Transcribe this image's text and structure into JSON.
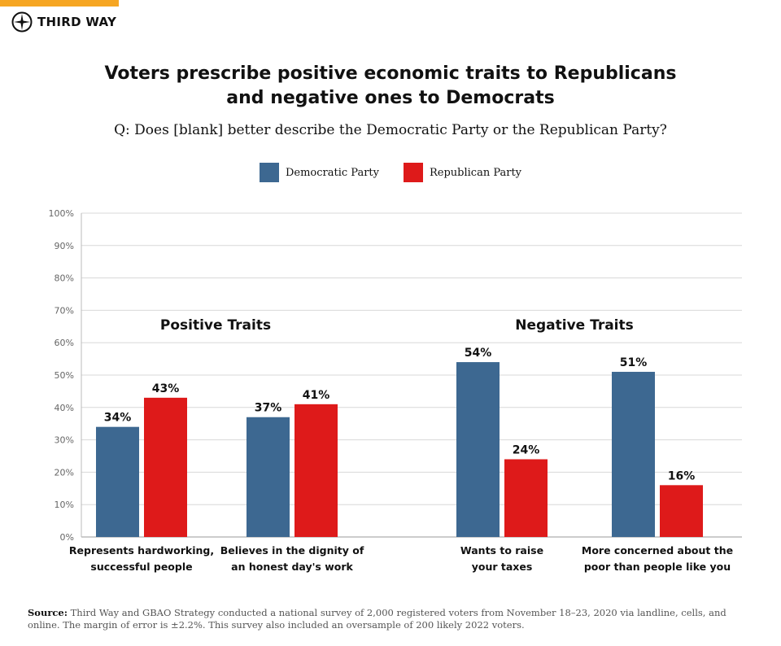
{
  "brand": {
    "name": "THIRD WAY",
    "accent": "#f6a623"
  },
  "title_line1": "Voters prescribe positive economic traits to Republicans",
  "title_line2": "and negative ones to Democrats",
  "subtitle": "Q: Does [blank] better describe the Democratic Party or the Republican Party?",
  "source_label": "Source:",
  "source_text": "Third Way and GBAO Strategy conducted a national survey of 2,000 registered voters from November 18–23, 2020 via landline, cells, and online. The margin of error is  ±2.2%. This survey also included an oversample of 200 likely 2022 voters.",
  "chart_data": {
    "type": "bar",
    "ylim": [
      0,
      100
    ],
    "yticks": [
      "0%",
      "10%",
      "20%",
      "30%",
      "40%",
      "50%",
      "60%",
      "70%",
      "80%",
      "90%",
      "100%"
    ],
    "grid": true,
    "legend_placement": "top",
    "group_labels": [
      "Positive Traits",
      "Negative Traits"
    ],
    "categories": [
      [
        "Represents hardworking,",
        "successful people"
      ],
      [
        "Believes in the dignity of",
        "an honest day's work"
      ],
      [
        "Wants to raise",
        "your taxes"
      ],
      [
        "More concerned about the",
        "poor than people like you"
      ]
    ],
    "series": [
      {
        "name": "Democratic Party",
        "color": "#3d6891",
        "values": [
          34,
          37,
          54,
          51
        ],
        "labels": [
          "34%",
          "37%",
          "54%",
          "51%"
        ]
      },
      {
        "name": "Republican Party",
        "color": "#de1a1a",
        "values": [
          43,
          41,
          24,
          16
        ],
        "labels": [
          "43%",
          "41%",
          "24%",
          "16%"
        ]
      }
    ]
  }
}
